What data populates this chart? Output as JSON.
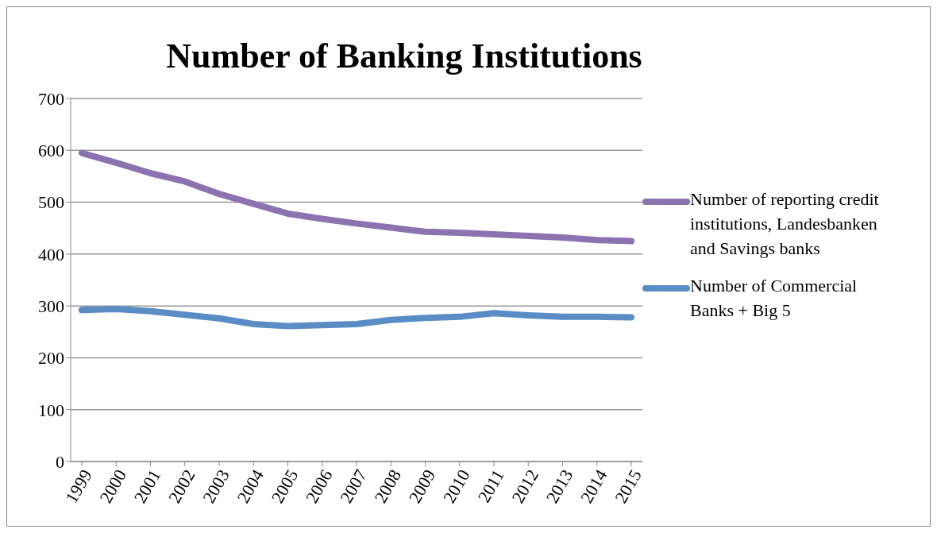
{
  "chart_data": {
    "type": "line",
    "title": "Number of Banking Institutions",
    "categories": [
      "1999",
      "2000",
      "2001",
      "2002",
      "2003",
      "2004",
      "2005",
      "2006",
      "2007",
      "2008",
      "2009",
      "2010",
      "2011",
      "2012",
      "2013",
      "2014",
      "2015"
    ],
    "series": [
      {
        "name": "Number of reporting credit institutions, Landesbanken and Savings banks",
        "color": "#8c73b0",
        "values": [
          595,
          576,
          556,
          540,
          516,
          497,
          478,
          468,
          459,
          451,
          443,
          441,
          438,
          435,
          432,
          427,
          425
        ]
      },
      {
        "name": "Number of Commercial Banks + Big 5",
        "color": "#5a8dc6",
        "values": [
          292,
          294,
          290,
          283,
          276,
          265,
          261,
          263,
          265,
          273,
          277,
          279,
          286,
          282,
          279,
          279,
          278
        ]
      }
    ],
    "ylim": [
      0,
      700
    ],
    "yticks": [
      0,
      100,
      200,
      300,
      400,
      500,
      600,
      700
    ],
    "grid": "y",
    "legend": "right",
    "marker": "none",
    "line_style": "solid"
  }
}
